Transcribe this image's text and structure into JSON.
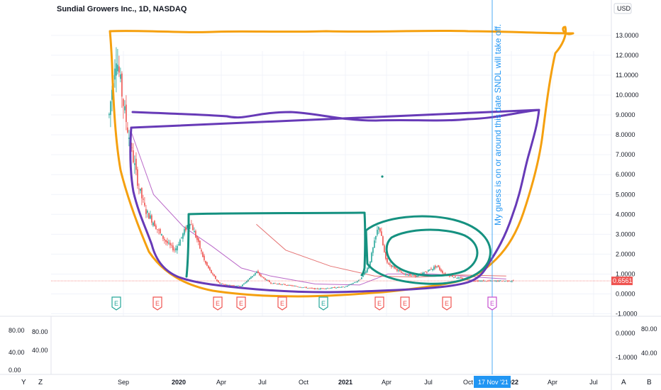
{
  "header": {
    "title": "Sundial Growers Inc., 1D, NASDAQ",
    "currency": "USD"
  },
  "annotation": {
    "text": "My guess is on or around this date SNDL will take off."
  },
  "crosshair": {
    "date_label": "17 Nov '21"
  },
  "last_price": {
    "label": "0.6561",
    "value": 0.6561,
    "color": "#ef5350"
  },
  "corner_buttons": [
    "Y",
    "Z",
    "A",
    "B"
  ],
  "earnings_markers": [
    {
      "label": "E",
      "beat": true
    },
    {
      "label": "E",
      "beat": false
    },
    {
      "label": "E",
      "beat": false
    },
    {
      "label": "E",
      "beat": false
    },
    {
      "label": "E",
      "beat": false
    },
    {
      "label": "E",
      "beat": true
    },
    {
      "label": "E",
      "beat": false
    },
    {
      "label": "E",
      "beat": false
    },
    {
      "label": "E",
      "beat": false
    },
    {
      "label": "E",
      "beat": null
    }
  ],
  "colors": {
    "up": "#26a69a",
    "down": "#ef5350",
    "ma_fast": "#ba68c8",
    "ma_slow": "#e57373",
    "orange": "#f5a00f",
    "purple": "#673ab7",
    "teal": "#159180",
    "crosshair": "#2196f3"
  },
  "chart_data": {
    "type": "candlestick",
    "title": "Sundial Growers Inc., 1D, NASDAQ",
    "y_axis": {
      "ticks": [
        "13.0000",
        "12.0000",
        "11.0000",
        "10.0000",
        "9.0000",
        "8.0000",
        "7.0000",
        "6.0000",
        "5.0000",
        "4.0000",
        "3.0000",
        "2.0000",
        "1.0000",
        "0.0000",
        "-1.0000"
      ],
      "ylim": [
        -1.0,
        14.0
      ]
    },
    "x_axis": {
      "ticks": [
        "Sep",
        "2020",
        "Apr",
        "Jul",
        "Oct",
        "2021",
        "Apr",
        "Jul",
        "Oct",
        "2022",
        "Apr",
        "Jul"
      ]
    },
    "price_series": [
      [
        "2019-08-01",
        9.0
      ],
      [
        "2019-08-15",
        12.2
      ],
      [
        "2019-09-01",
        9.3
      ],
      [
        "2019-09-15",
        7.4
      ],
      [
        "2019-10-01",
        5.4
      ],
      [
        "2019-10-15",
        4.2
      ],
      [
        "2019-11-01",
        3.6
      ],
      [
        "2019-11-15",
        3.0
      ],
      [
        "2019-12-01",
        2.5
      ],
      [
        "2019-12-15",
        2.2
      ],
      [
        "2020-01-01",
        3.0
      ],
      [
        "2020-01-15",
        3.7
      ],
      [
        "2020-02-01",
        2.6
      ],
      [
        "2020-02-15",
        1.6
      ],
      [
        "2020-03-01",
        1.0
      ],
      [
        "2020-03-15",
        0.55
      ],
      [
        "2020-04-01",
        0.45
      ],
      [
        "2020-05-01",
        0.4
      ],
      [
        "2020-06-01",
        1.1
      ],
      [
        "2020-06-15",
        0.8
      ],
      [
        "2020-07-01",
        0.55
      ],
      [
        "2020-08-01",
        0.45
      ],
      [
        "2020-09-01",
        0.35
      ],
      [
        "2020-10-01",
        0.25
      ],
      [
        "2020-11-01",
        0.3
      ],
      [
        "2020-12-01",
        0.35
      ],
      [
        "2021-01-01",
        0.7
      ],
      [
        "2021-01-20",
        1.4
      ],
      [
        "2021-02-10",
        3.5
      ],
      [
        "2021-02-25",
        1.6
      ],
      [
        "2021-03-15",
        1.3
      ],
      [
        "2021-04-01",
        1.0
      ],
      [
        "2021-05-01",
        0.9
      ],
      [
        "2021-06-10",
        1.4
      ],
      [
        "2021-06-25",
        1.0
      ],
      [
        "2021-08-01",
        0.75
      ],
      [
        "2021-09-01",
        0.65
      ],
      [
        "2021-10-01",
        0.65
      ],
      [
        "2021-11-17",
        0.66
      ]
    ],
    "moving_averages": [
      {
        "values": [
          [
            "2019-09-15",
            8.2
          ],
          [
            "2019-11-01",
            5.0
          ],
          [
            "2020-01-01",
            3.4
          ],
          [
            "2020-03-01",
            2.4
          ],
          [
            "2020-05-01",
            1.3
          ],
          [
            "2020-07-01",
            0.9
          ],
          [
            "2020-10-01",
            0.5
          ],
          [
            "2021-01-01",
            0.45
          ],
          [
            "2021-03-01",
            1.0
          ],
          [
            "2021-06-01",
            1.0
          ],
          [
            "2021-09-01",
            0.85
          ],
          [
            "2021-11-01",
            0.75
          ]
        ]
      },
      {
        "values": [
          [
            "2020-06-01",
            3.5
          ],
          [
            "2020-08-01",
            2.2
          ],
          [
            "2020-11-01",
            1.4
          ],
          [
            "2021-02-01",
            0.9
          ],
          [
            "2021-05-01",
            0.85
          ],
          [
            "2021-08-01",
            0.95
          ],
          [
            "2021-11-01",
            0.9
          ]
        ]
      }
    ],
    "rsi_pane": {
      "ticks_left": [
        "80.00",
        "40.00",
        "0.00"
      ],
      "ticks_left2": [
        "80.00",
        "40.00"
      ],
      "ticks_right": [
        "0.0000",
        "-1.0000"
      ],
      "ticks_right2": [
        "80.00",
        "40.00"
      ]
    }
  }
}
